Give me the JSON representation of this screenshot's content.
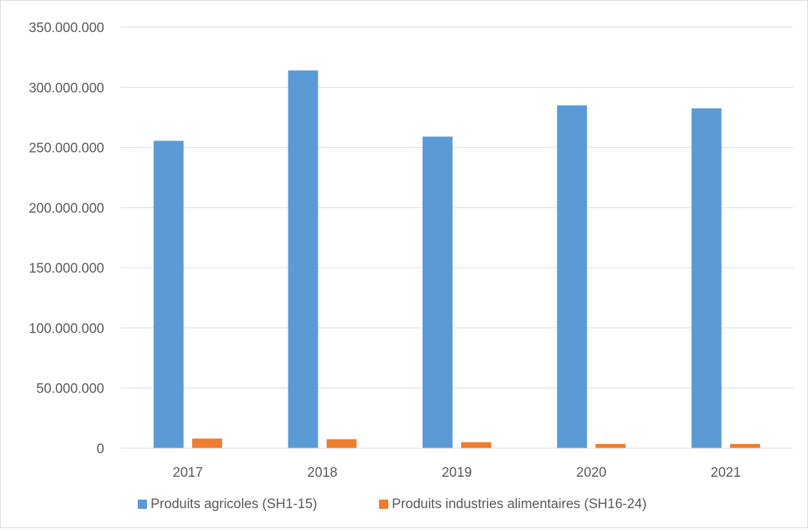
{
  "chart_data": {
    "type": "bar",
    "title": "",
    "xlabel": "",
    "ylabel": "",
    "categories": [
      "2017",
      "2018",
      "2019",
      "2020",
      "2021"
    ],
    "series": [
      {
        "name": "Produits agricoles (SH1-15)",
        "color": "#5b9bd5",
        "values": [
          255500000,
          314000000,
          259000000,
          285000000,
          282500000
        ]
      },
      {
        "name": "Produits industries alimentaires (SH16-24)",
        "color": "#ed7d31",
        "values": [
          8000000,
          7500000,
          5000000,
          3500000,
          3500000
        ]
      }
    ],
    "ylim": [
      0,
      350000000
    ],
    "yticks": [
      0,
      50000000,
      100000000,
      150000000,
      200000000,
      250000000,
      300000000,
      350000000
    ],
    "ytick_labels": [
      "0",
      "50.000.000",
      "100.000.000",
      "150.000.000",
      "200.000.000",
      "250.000.000",
      "300.000.000",
      "350.000.000"
    ],
    "grid": true,
    "legend_position": "bottom"
  }
}
